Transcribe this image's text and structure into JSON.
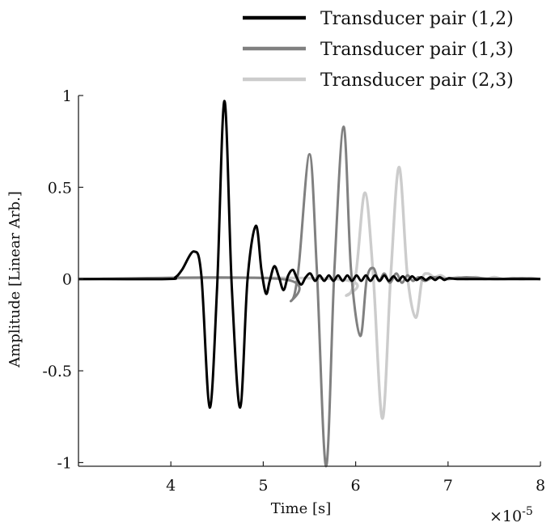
{
  "chart_data": {
    "type": "line",
    "xlabel": "Time [s]",
    "ylabel": "Amplitude [Linear Arb.]",
    "x_exponent_label": "×10",
    "x_exponent_power": "-5",
    "xlim": [
      3.0,
      8.0
    ],
    "ylim": [
      -1.02,
      1.0
    ],
    "x_ticks": [
      4,
      5,
      6,
      7,
      8
    ],
    "x_tick_labels": [
      "4",
      "5",
      "6",
      "7",
      "8"
    ],
    "y_ticks": [
      1,
      0.5,
      0,
      -0.5,
      -1
    ],
    "y_tick_labels": [
      "1",
      "0.5",
      "0",
      "-0.5",
      "-1"
    ],
    "grid": false,
    "legend_position": "top-right",
    "series": [
      {
        "name": "Transducer pair (1,2)",
        "color": "#000000",
        "x": [
          3.0,
          3.95,
          4.05,
          4.12,
          4.25,
          4.33,
          4.42,
          4.5,
          4.58,
          4.66,
          4.75,
          4.83,
          4.92,
          4.98,
          5.03,
          5.07,
          5.12,
          5.17,
          5.22,
          5.27,
          5.32,
          5.36,
          5.41,
          5.46,
          5.51,
          5.56,
          5.61,
          5.66,
          5.71,
          5.76,
          5.81,
          5.86,
          5.91,
          5.96,
          6.01,
          6.06,
          6.11,
          6.16,
          6.21,
          6.26,
          6.31,
          6.36,
          6.41,
          6.46,
          6.51,
          6.56,
          6.61,
          6.66,
          6.71,
          6.76,
          6.81,
          6.86,
          6.91,
          6.96,
          7.01,
          7.1,
          7.3,
          7.6,
          7.9,
          8.0
        ],
        "y": [
          0,
          0,
          0.01,
          0.05,
          0.15,
          0.02,
          -0.7,
          -0.05,
          0.97,
          -0.05,
          -0.7,
          0.0,
          0.29,
          0.05,
          -0.08,
          -0.01,
          0.07,
          0.01,
          -0.06,
          0.02,
          0.05,
          0.01,
          -0.03,
          0.01,
          0.03,
          -0.01,
          0.02,
          -0.01,
          0.02,
          -0.01,
          0.02,
          -0.01,
          0.02,
          -0.01,
          0.02,
          -0.01,
          0.02,
          -0.01,
          0.02,
          -0.01,
          0.02,
          -0.01,
          0.015,
          -0.01,
          0.015,
          -0.01,
          0.015,
          -0.005,
          0.01,
          -0.005,
          0.01,
          -0.005,
          0.01,
          -0.005,
          0.005,
          0,
          0,
          0,
          0,
          0
        ]
      },
      {
        "name": "Transducer pair (1,3)",
        "color": "#808080",
        "x": [
          3.0,
          5.2,
          5.3,
          5.38,
          5.5,
          5.58,
          5.68,
          5.77,
          5.87,
          5.95,
          6.05,
          6.12,
          6.19,
          6.25,
          6.31,
          6.37,
          6.44,
          6.5,
          6.56,
          6.62,
          6.68,
          6.75,
          6.85,
          7.0,
          7.2,
          7.5,
          7.8,
          8.0
        ],
        "y": [
          0,
          0.0,
          -0.12,
          0.05,
          0.68,
          0.05,
          -1.02,
          0.05,
          0.83,
          0.05,
          -0.31,
          0.0,
          0.06,
          -0.01,
          0.03,
          -0.02,
          0.03,
          -0.02,
          0.02,
          -0.01,
          0.01,
          -0.01,
          0.01,
          0.0,
          0.01,
          0.0,
          0.005,
          0
        ]
      },
      {
        "name": "Transducer pair (2,3)",
        "color": "#cccccc",
        "x": [
          3.0,
          5.78,
          5.9,
          6.0,
          6.1,
          6.19,
          6.29,
          6.38,
          6.47,
          6.56,
          6.65,
          6.72,
          6.78,
          6.85,
          6.92,
          7.0,
          7.1,
          7.2,
          7.3,
          7.4,
          7.5,
          7.6,
          7.7,
          7.8,
          7.9,
          8.0
        ],
        "y": [
          0,
          0,
          -0.09,
          0.02,
          0.47,
          0.02,
          -0.76,
          0.02,
          0.61,
          0.02,
          -0.21,
          0.0,
          0.03,
          0.01,
          0.02,
          0.0,
          0.01,
          0.0,
          0.01,
          0.0,
          0.01,
          0.0,
          0.005,
          0.0,
          0.005,
          0
        ]
      }
    ]
  }
}
